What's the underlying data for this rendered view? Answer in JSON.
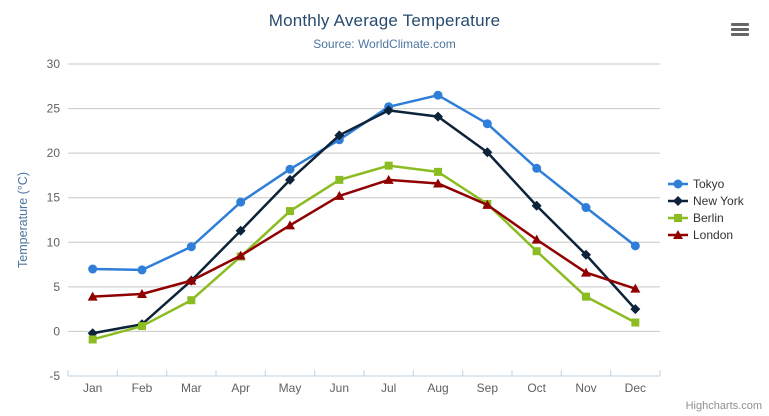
{
  "credits": {
    "label": "Highcharts.com"
  },
  "menu": {
    "icon": "hamburger-icon"
  },
  "colors": {
    "title": "#274b6d",
    "subtitle": "#4d759e",
    "axis_title": "#4d759e",
    "tick_label": "#606060",
    "gridline": "#c8c8c8",
    "axis_line": "#c0d0e0",
    "legend_text": "#333333",
    "credits_text": "#909090",
    "background": "#ffffff"
  },
  "chart_data": {
    "type": "line",
    "title": "Monthly Average Temperature",
    "subtitle": "Source: WorldClimate.com",
    "categories": [
      "Jan",
      "Feb",
      "Mar",
      "Apr",
      "May",
      "Jun",
      "Jul",
      "Aug",
      "Sep",
      "Oct",
      "Nov",
      "Dec"
    ],
    "series": [
      {
        "name": "Tokyo",
        "color": "#2f7ed8",
        "marker": "circle",
        "values": [
          7.0,
          6.9,
          9.5,
          14.5,
          18.2,
          21.5,
          25.2,
          26.5,
          23.3,
          18.3,
          13.9,
          9.6
        ]
      },
      {
        "name": "New York",
        "color": "#0d233a",
        "marker": "diamond",
        "values": [
          -0.2,
          0.8,
          5.7,
          11.3,
          17.0,
          22.0,
          24.8,
          24.1,
          20.1,
          14.1,
          8.6,
          2.5
        ]
      },
      {
        "name": "Berlin",
        "color": "#8bbc21",
        "marker": "square",
        "values": [
          -0.9,
          0.6,
          3.5,
          8.4,
          13.5,
          17.0,
          18.6,
          17.9,
          14.3,
          9.0,
          3.9,
          1.0
        ]
      },
      {
        "name": "London",
        "color": "#910000",
        "marker": "triangle",
        "values": [
          3.9,
          4.2,
          5.7,
          8.5,
          11.9,
          15.2,
          17.0,
          16.6,
          14.2,
          10.3,
          6.6,
          4.8
        ]
      }
    ],
    "xlabel": "",
    "ylabel": "Temperature (°C)",
    "ylim": [
      -5,
      30
    ],
    "y_tick_interval": 5,
    "grid": true,
    "legend_position": "right"
  }
}
